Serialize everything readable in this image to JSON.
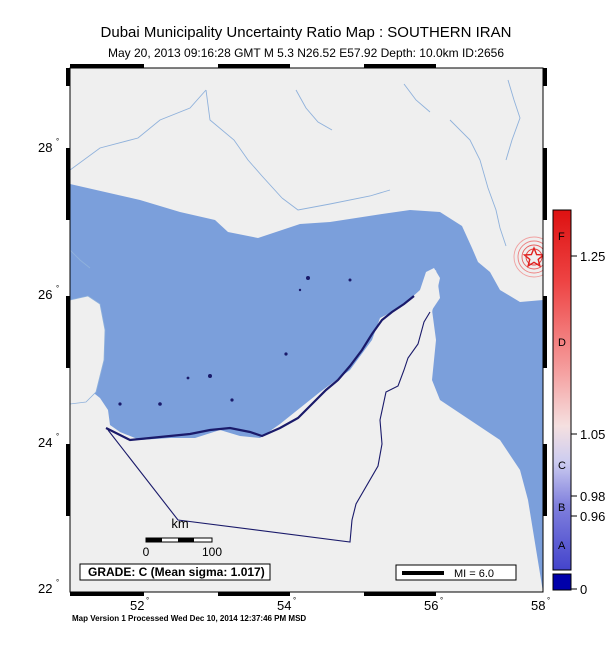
{
  "title": "Dubai Municipality Uncertainty Ratio Map : SOUTHERN IRAN",
  "subtitle": "May 20, 2013 09:16:28 GMT   M 5.3   N26.52 E57.92   Depth: 10.0km   ID:2656",
  "footer": "Map Version 1 Processed Wed Dec 10, 2014 12:37:46 PM MSD",
  "lat_labels": [
    "28",
    "26",
    "24",
    "22"
  ],
  "lon_labels": [
    "52",
    "54",
    "56",
    "58"
  ],
  "scale_bar": {
    "unit": "km",
    "start": "0",
    "end": "100"
  },
  "grade_box": "GRADE: C (Mean sigma: 1.017)",
  "mi_legend": "MI = 6.0",
  "colorbar": {
    "letters": [
      "F",
      "D",
      "C",
      "B",
      "A"
    ],
    "values": [
      "1.25",
      "1.05",
      "0.98",
      "0.96",
      "0"
    ]
  },
  "epicenter": {
    "lat": 26.52,
    "lon": 57.92
  },
  "colors": {
    "sea": "#7b9fdb",
    "land": "#efefef",
    "river": "#8fb1db",
    "coast": "#1a1a6a",
    "epicenter": "#e0201e"
  }
}
